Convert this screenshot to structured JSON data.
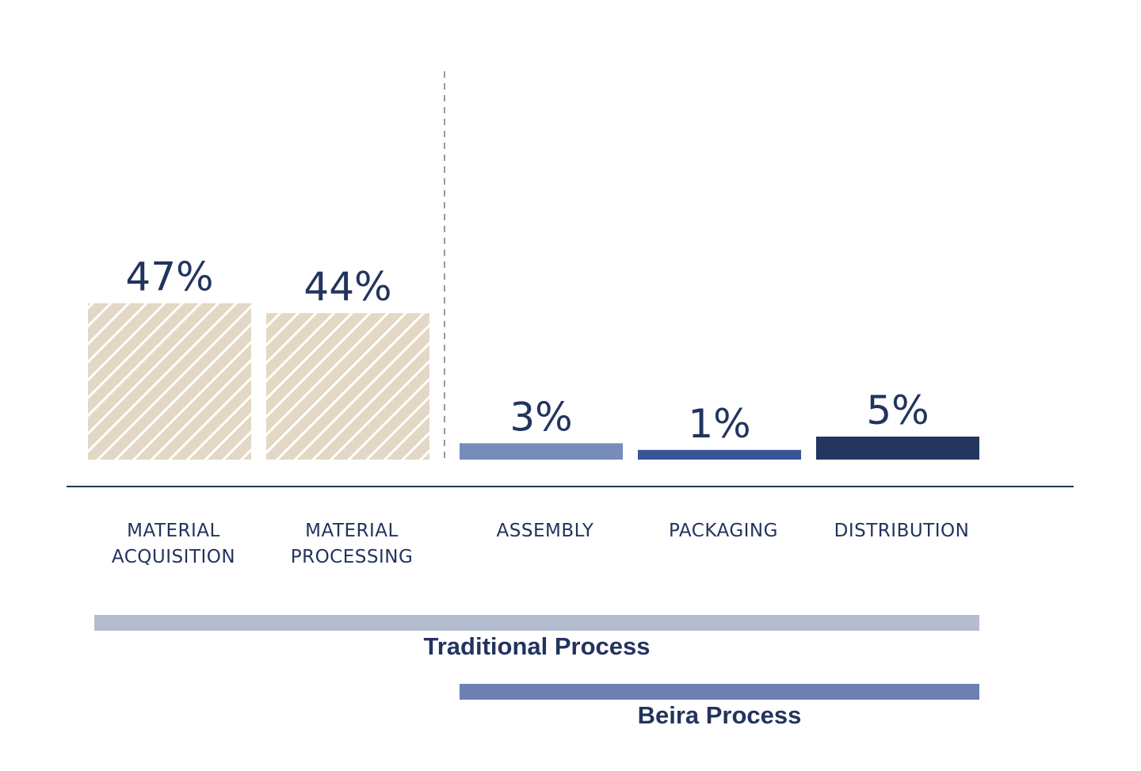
{
  "chart_data": {
    "type": "bar",
    "categories": [
      [
        "MATERIAL",
        "ACQUISITION"
      ],
      [
        "MATERIAL",
        "PROCESSING"
      ],
      [
        "ASSEMBLY"
      ],
      [
        "PACKAGING"
      ],
      [
        "DISTRIBUTION"
      ]
    ],
    "values": [
      47,
      44,
      3,
      1,
      5
    ],
    "value_labels": [
      "47%",
      "44%",
      "3%",
      "1%",
      "5%"
    ],
    "bar_styles": [
      "hatched",
      "hatched",
      "solid",
      "solid",
      "solid"
    ],
    "colors": [
      "#e3d8c5",
      "#e3d8c5",
      "#768cb9",
      "#3a5497",
      "#22365f"
    ],
    "text_color": "#22345e",
    "axis_color": "#22345e",
    "divider": {
      "between": [
        1,
        2
      ],
      "style": "dashed",
      "color": "#9a9a9a"
    },
    "ranges": [
      {
        "label": "Traditional Process",
        "from": 0,
        "to": 4,
        "color": "#b4bdd0"
      },
      {
        "label": "Beira Process",
        "from": 2,
        "to": 4,
        "color": "#6c81b2"
      }
    ]
  }
}
